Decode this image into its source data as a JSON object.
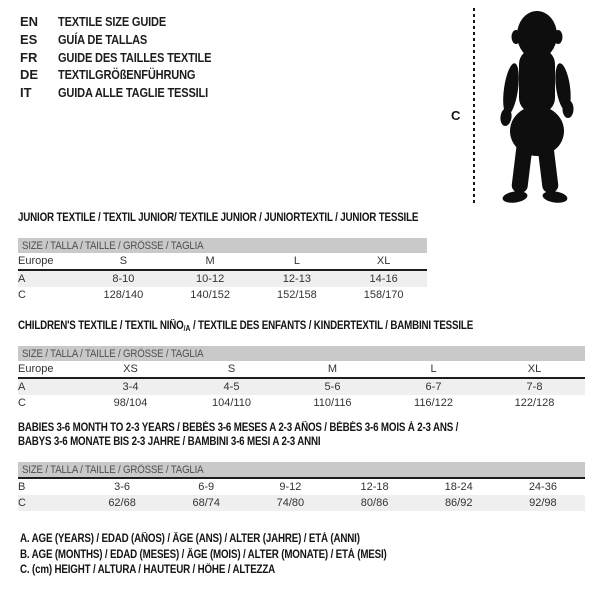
{
  "colors": {
    "background": "#ffffff",
    "bar_background": "#c9c9c9",
    "bar_text": "#4f4f4f",
    "shaded_row": "#efefef",
    "separator_line": "#1c1c1c",
    "silhouette": "#0e0e0e"
  },
  "languages": [
    {
      "code": "EN",
      "label": "TEXTILE SIZE GUIDE"
    },
    {
      "code": "ES",
      "label": "GUÍA DE TALLAS"
    },
    {
      "code": "FR",
      "label": "GUIDE DES TAILLES TEXTILE"
    },
    {
      "code": "DE",
      "label": "TEXTILGRÖßENFÜHRUNG"
    },
    {
      "code": "IT",
      "label": "GUIDA ALLE TAGLIE TESSILI"
    }
  ],
  "figure": {
    "icon": "baby-silhouette",
    "measure_label": "C"
  },
  "tables": [
    {
      "title_lines": [
        [
          {
            "text": "JUNIOR TEXTILE / TEXTIL JUNIOR/ TEXTILE JUNIOR / JUNIORTEXTIL / JUNIOR TESSILE"
          }
        ]
      ],
      "size_header": "SIZE / TALLA / TAILLE / GRÖSSE / TAGLIA",
      "rows": [
        {
          "label": "Europe",
          "values": [
            "S",
            "M",
            "L",
            "XL"
          ],
          "shaded": false,
          "line_above": false
        },
        {
          "label": "A",
          "values": [
            "8-10",
            "10-12",
            "12-13",
            "14-16"
          ],
          "shaded": true,
          "line_above": true
        },
        {
          "label": "C",
          "values": [
            "128/140",
            "140/152",
            "152/158",
            "158/170"
          ],
          "shaded": false,
          "line_above": false
        }
      ]
    },
    {
      "title_lines": [
        [
          {
            "text": "CHILDREN'S TEXTILE / TEXTIL NIÑO"
          },
          {
            "text": "/A",
            "sub": true
          },
          {
            "text": " / TEXTILE DES ENFANTS / KINDERTEXTIL / BAMBINI TESSILE"
          }
        ]
      ],
      "size_header": "SIZE / TALLA / TAILLE / GRÖSSE / TAGLIA",
      "rows": [
        {
          "label": "Europe",
          "values": [
            "XS",
            "S",
            "M",
            "L",
            "XL"
          ],
          "shaded": false,
          "line_above": false
        },
        {
          "label": "A",
          "values": [
            "3-4",
            "4-5",
            "5-6",
            "6-7",
            "7-8"
          ],
          "shaded": true,
          "line_above": true
        },
        {
          "label": "C",
          "values": [
            "98/104",
            "104/110",
            "110/116",
            "116/122",
            "122/128"
          ],
          "shaded": false,
          "line_above": false
        }
      ]
    },
    {
      "title_lines": [
        [
          {
            "text": "BABIES 3-6 MONTH TO 2-3 YEARS / BEBÉS 3-6 MESES A 2-3 AÑOS / BÉBÉS 3-6 MOIS À 2-3 ANS /"
          }
        ],
        [
          {
            "text": "BABYS 3-6 MONATE BIS 2-3 JAHRE / BAMBINI 3-6 MESI A 2-3 ANNI"
          }
        ]
      ],
      "size_header": "SIZE / TALLA / TAILLE / GRÖSSE / TAGLIA",
      "rows": [
        {
          "label": "B",
          "values": [
            "3-6",
            "6-9",
            "9-12",
            "12-18",
            "18-24",
            "24-36"
          ],
          "shaded": false,
          "line_above": true
        },
        {
          "label": "C",
          "values": [
            "62/68",
            "68/74",
            "74/80",
            "80/86",
            "86/92",
            "92/98"
          ],
          "shaded": true,
          "line_above": false
        }
      ]
    }
  ],
  "notes": [
    "A. AGE (YEARS) / EDAD (AÑOS) / ÂGE (ANS) / ALTER (JAHRE) / ETÀ (ANNI)",
    "B. AGE (MONTHS) / EDAD (MESES) / ÂGE (MOIS) / ALTER (MONATE) / ETÀ (MESI)",
    "C. (cm) HEIGHT / ALTURA / HAUTEUR / HÖHE / ALTEZZA"
  ]
}
